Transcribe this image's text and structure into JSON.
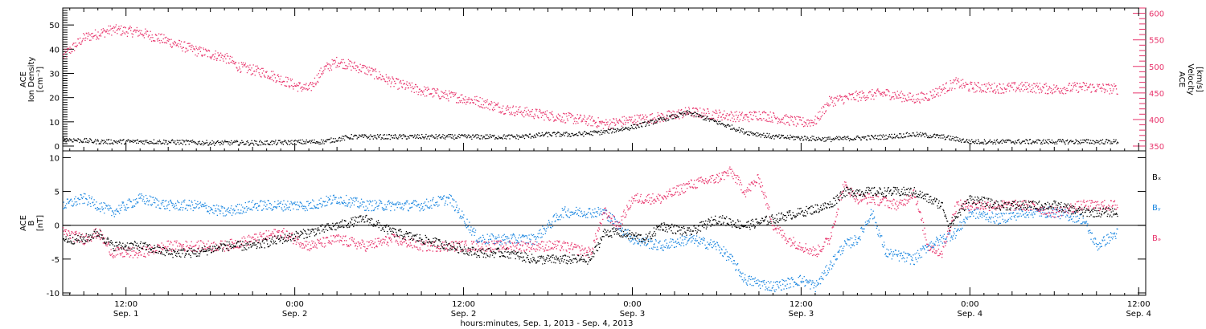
{
  "colors": {
    "black": "#000000",
    "pink": "#e8336b",
    "blue": "#1a86e0"
  },
  "x_axis": {
    "ticks": [
      {
        "hours": 12,
        "time": "12:00",
        "date": "Sep. 1"
      },
      {
        "hours": 24,
        "time": "0:00",
        "date": "Sep. 2"
      },
      {
        "hours": 36,
        "time": "12:00",
        "date": "Sep. 2"
      },
      {
        "hours": 48,
        "time": "0:00",
        "date": "Sep. 3"
      },
      {
        "hours": 60,
        "time": "12:00",
        "date": "Sep. 3"
      },
      {
        "hours": 72,
        "time": "0:00",
        "date": "Sep. 4"
      },
      {
        "hours": 84,
        "time": "12:00",
        "date": "Sep. 4"
      }
    ],
    "title": "hours:minutes, Sep.  1, 2013 - Sep.  4, 2013"
  },
  "chart_data": [
    {
      "type": "scatter",
      "panel": "top",
      "xlim_hours": [
        7.5,
        84.5
      ],
      "ylabel_left": [
        "ACE",
        "Ion Density",
        "[cm⁻³]"
      ],
      "ylabel_right": [
        "ACE",
        "Velocity",
        "[km/s]"
      ],
      "ylim_left": [
        0,
        57
      ],
      "ylim_right": [
        350,
        610
      ],
      "left_ticks": [
        0,
        10,
        20,
        30,
        40,
        50
      ],
      "right_ticks": [
        350,
        400,
        450,
        500,
        550,
        600
      ],
      "series": [
        {
          "key": "density",
          "axis": "left",
          "color": "#000000",
          "points": [
            [
              7.5,
              3
            ],
            [
              10,
              2
            ],
            [
              14,
              2
            ],
            [
              18,
              1.5
            ],
            [
              22,
              1.5
            ],
            [
              26,
              2
            ],
            [
              28,
              4
            ],
            [
              32,
              4
            ],
            [
              36,
              4
            ],
            [
              40,
              4
            ],
            [
              42,
              5
            ],
            [
              44,
              5
            ],
            [
              46,
              6
            ],
            [
              48,
              8
            ],
            [
              50,
              11
            ],
            [
              52,
              14
            ],
            [
              54,
              10
            ],
            [
              56,
              6
            ],
            [
              58,
              4
            ],
            [
              62,
              3
            ],
            [
              66,
              4
            ],
            [
              68,
              5
            ],
            [
              70,
              4
            ],
            [
              72,
              2
            ],
            [
              76,
              2
            ],
            [
              80,
              2
            ],
            [
              82.5,
              2
            ]
          ]
        },
        {
          "key": "velocity",
          "axis": "right",
          "color": "#e8336b",
          "points": [
            [
              7.5,
              520
            ],
            [
              9,
              555
            ],
            [
              11,
              570
            ],
            [
              13,
              565
            ],
            [
              15,
              548
            ],
            [
              17,
              530
            ],
            [
              19,
              518
            ],
            [
              20,
              500
            ],
            [
              22,
              488
            ],
            [
              24,
              465
            ],
            [
              25,
              458
            ],
            [
              26,
              495
            ],
            [
              27,
              510
            ],
            [
              29,
              495
            ],
            [
              31,
              470
            ],
            [
              33,
              455
            ],
            [
              35,
              445
            ],
            [
              37,
              435
            ],
            [
              39,
              420
            ],
            [
              41,
              412
            ],
            [
              43,
              405
            ],
            [
              45,
              398
            ],
            [
              46,
              392
            ],
            [
              48,
              400
            ],
            [
              50,
              405
            ],
            [
              52,
              415
            ],
            [
              54,
              410
            ],
            [
              56,
              405
            ],
            [
              57,
              410
            ],
            [
              58,
              405
            ],
            [
              59,
              400
            ],
            [
              60,
              395
            ],
            [
              61,
              398
            ],
            [
              62,
              435
            ],
            [
              64,
              445
            ],
            [
              66,
              450
            ],
            [
              68,
              440
            ],
            [
              69,
              445
            ],
            [
              71,
              470
            ],
            [
              72,
              462
            ],
            [
              74,
              460
            ],
            [
              76,
              462
            ],
            [
              78,
              458
            ],
            [
              80,
              462
            ],
            [
              82.5,
              458
            ]
          ]
        }
      ]
    },
    {
      "type": "scatter",
      "panel": "bottom",
      "xlim_hours": [
        7.5,
        84.5
      ],
      "ylabel_left": [
        "ACE",
        "B",
        "[nT]"
      ],
      "ylim": [
        -10,
        11
      ],
      "ticks": [
        -10,
        -5,
        0,
        5,
        10
      ],
      "zero_line": true,
      "legend": "right",
      "series": [
        {
          "name": "Bₓ",
          "color": "#000000",
          "points": [
            [
              7.5,
              -2
            ],
            [
              9,
              -2
            ],
            [
              10,
              -1
            ],
            [
              11,
              -3
            ],
            [
              13,
              -3
            ],
            [
              15,
              -4
            ],
            [
              17,
              -4
            ],
            [
              19,
              -3
            ],
            [
              21,
              -3
            ],
            [
              23,
              -2
            ],
            [
              25,
              -1
            ],
            [
              27,
              0
            ],
            [
              29,
              1
            ],
            [
              31,
              -1
            ],
            [
              33,
              -2
            ],
            [
              35,
              -3
            ],
            [
              37,
              -4
            ],
            [
              39,
              -4
            ],
            [
              41,
              -5
            ],
            [
              43,
              -5
            ],
            [
              45,
              -5
            ],
            [
              46,
              -1
            ],
            [
              47,
              -1
            ],
            [
              49,
              -2
            ],
            [
              50,
              0
            ],
            [
              52,
              -1
            ],
            [
              54,
              1
            ],
            [
              56,
              0
            ],
            [
              58,
              1
            ],
            [
              60,
              2
            ],
            [
              62,
              3
            ],
            [
              63,
              5
            ],
            [
              64,
              5
            ],
            [
              66,
              5
            ],
            [
              68,
              5
            ],
            [
              70,
              3
            ],
            [
              70.5,
              0
            ],
            [
              72,
              4
            ],
            [
              74,
              3
            ],
            [
              76,
              3
            ],
            [
              78,
              3
            ],
            [
              80,
              2
            ],
            [
              82.5,
              2
            ]
          ]
        },
        {
          "name": "Bᵧ",
          "color": "#1a86e0",
          "points": [
            [
              7.5,
              3
            ],
            [
              9,
              4
            ],
            [
              10,
              3
            ],
            [
              11,
              2
            ],
            [
              13,
              4
            ],
            [
              15,
              3
            ],
            [
              17,
              3
            ],
            [
              19,
              2
            ],
            [
              21,
              3
            ],
            [
              23,
              3
            ],
            [
              24,
              3
            ],
            [
              25,
              3
            ],
            [
              27,
              4
            ],
            [
              29,
              3
            ],
            [
              31,
              3
            ],
            [
              33,
              3
            ],
            [
              35,
              4
            ],
            [
              37,
              -2
            ],
            [
              39,
              -2
            ],
            [
              41,
              -2
            ],
            [
              43,
              2
            ],
            [
              45,
              2
            ],
            [
              46,
              2
            ],
            [
              48,
              -2
            ],
            [
              50,
              -3
            ],
            [
              52,
              -2
            ],
            [
              54,
              -3
            ],
            [
              55,
              -5
            ],
            [
              56,
              -8
            ],
            [
              58,
              -9
            ],
            [
              60,
              -8
            ],
            [
              61,
              -9
            ],
            [
              62,
              -6
            ],
            [
              63,
              -3
            ],
            [
              64,
              -2
            ],
            [
              65,
              2
            ],
            [
              66,
              -4
            ],
            [
              68,
              -5
            ],
            [
              69,
              -3
            ],
            [
              70,
              -2
            ],
            [
              71,
              -1
            ],
            [
              72,
              2
            ],
            [
              74,
              1
            ],
            [
              76,
              2
            ],
            [
              78,
              2
            ],
            [
              80,
              1
            ],
            [
              81,
              -3
            ],
            [
              82.5,
              -1
            ]
          ]
        },
        {
          "name": "Bₔ",
          "color": "#e8336b",
          "points": [
            [
              7.5,
              -1
            ],
            [
              9,
              -2
            ],
            [
              10,
              -1
            ],
            [
              11,
              -4
            ],
            [
              13,
              -4
            ],
            [
              15,
              -3
            ],
            [
              17,
              -3
            ],
            [
              19,
              -3
            ],
            [
              21,
              -2
            ],
            [
              23,
              -1
            ],
            [
              25,
              -3
            ],
            [
              27,
              -2
            ],
            [
              29,
              -3
            ],
            [
              31,
              -2
            ],
            [
              33,
              -3
            ],
            [
              35,
              -3
            ],
            [
              37,
              -3
            ],
            [
              39,
              -3
            ],
            [
              41,
              -3
            ],
            [
              43,
              -3
            ],
            [
              45,
              -4
            ],
            [
              46,
              2
            ],
            [
              47,
              0
            ],
            [
              48,
              4
            ],
            [
              50,
              4
            ],
            [
              51,
              5
            ],
            [
              52,
              6
            ],
            [
              54,
              7
            ],
            [
              55,
              8
            ],
            [
              56,
              5
            ],
            [
              57,
              7
            ],
            [
              58,
              0
            ],
            [
              59,
              -2
            ],
            [
              60,
              -3
            ],
            [
              61,
              -4
            ],
            [
              62,
              -2
            ],
            [
              63,
              6
            ],
            [
              64,
              4
            ],
            [
              65,
              4
            ],
            [
              67,
              3
            ],
            [
              68,
              5
            ],
            [
              69,
              -3
            ],
            [
              70,
              -4
            ],
            [
              71,
              3
            ],
            [
              72,
              3
            ],
            [
              74,
              3
            ],
            [
              76,
              3
            ],
            [
              78,
              2
            ],
            [
              80,
              3
            ],
            [
              82.5,
              3
            ]
          ]
        }
      ]
    }
  ]
}
